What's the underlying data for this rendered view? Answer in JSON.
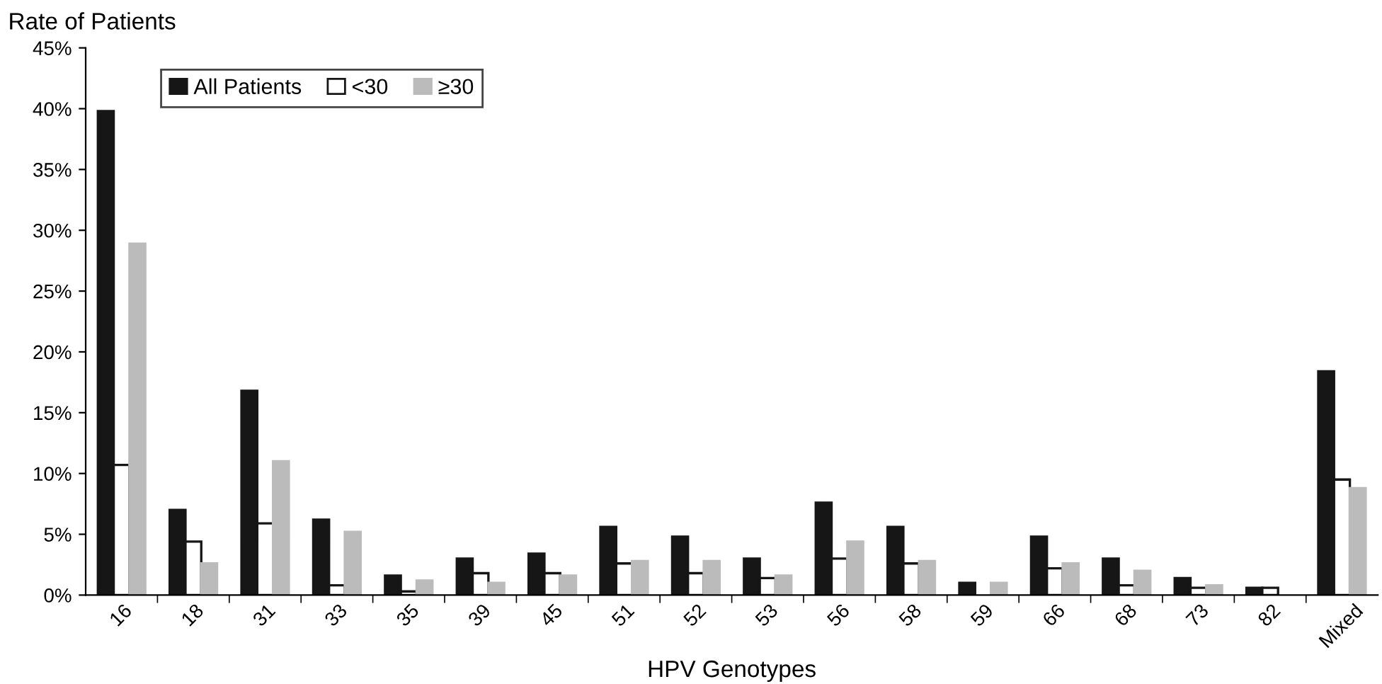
{
  "chart_data": {
    "type": "bar",
    "ylabel": "Rate of Patients",
    "xlabel": "HPV Genotypes",
    "categories": [
      "16",
      "18",
      "31",
      "33",
      "35",
      "39",
      "45",
      "51",
      "52",
      "53",
      "56",
      "58",
      "59",
      "66",
      "68",
      "73",
      "82",
      "Mixed"
    ],
    "series": [
      {
        "name": "All Patients",
        "color": "#161616",
        "values": [
          39.8,
          7.0,
          16.8,
          6.2,
          1.6,
          3.0,
          3.4,
          5.6,
          4.8,
          3.0,
          7.6,
          5.6,
          1.0,
          4.8,
          3.0,
          1.4,
          0.6,
          18.4
        ]
      },
      {
        "name": "<30",
        "color": "#ffffff",
        "values": [
          10.7,
          4.4,
          5.9,
          0.8,
          0.3,
          1.8,
          1.8,
          2.6,
          1.8,
          1.4,
          3.0,
          2.6,
          0,
          2.2,
          0.8,
          0.6,
          0.6,
          9.5
        ]
      },
      {
        "name": "≥30",
        "color": "#bbbbbb",
        "values": [
          28.9,
          2.6,
          11.0,
          5.2,
          1.2,
          1.0,
          1.6,
          2.8,
          2.8,
          1.6,
          4.4,
          2.8,
          1.0,
          2.6,
          2.0,
          0.8,
          0,
          8.8
        ]
      }
    ],
    "ylim": [
      0,
      45
    ],
    "yticks": [
      {
        "value": 0,
        "label": "0%"
      },
      {
        "value": 5,
        "label": "5%"
      },
      {
        "value": 10,
        "label": "10%"
      },
      {
        "value": 15,
        "label": "15%"
      },
      {
        "value": 20,
        "label": "20%"
      },
      {
        "value": 25,
        "label": "25%"
      },
      {
        "value": 30,
        "label": "30%"
      },
      {
        "value": 35,
        "label": "35%"
      },
      {
        "value": 40,
        "label": "40%"
      },
      {
        "value": 45,
        "label": "45%"
      }
    ],
    "grid": false,
    "legend": "top left"
  }
}
